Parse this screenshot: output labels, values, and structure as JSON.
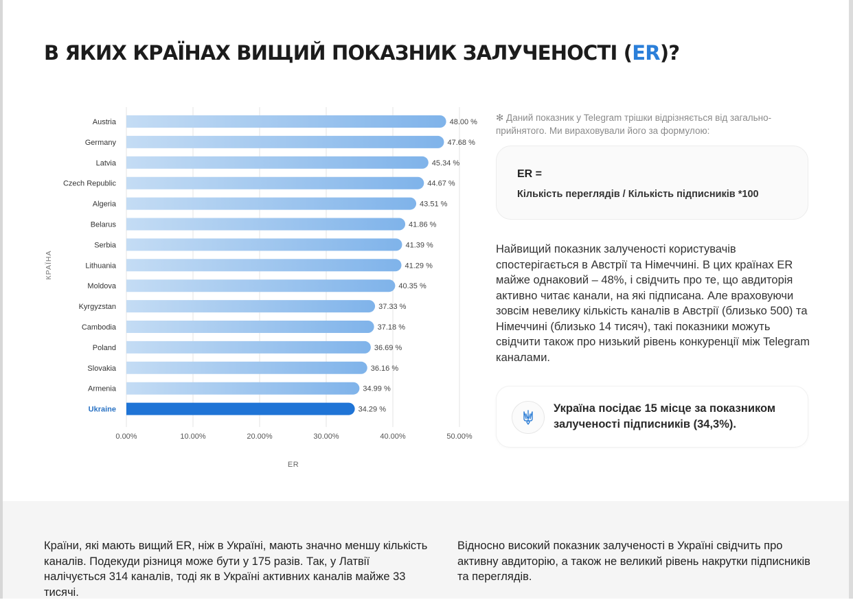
{
  "page": {
    "title_prefix": "В ЯКИХ КРАЇНАХ ВИЩИЙ ПОКАЗНИК ЗАЛУЧЕНОСТІ (",
    "title_accent": "ER",
    "title_suffix": ")?"
  },
  "colors": {
    "accent": "#2b7fd9",
    "bar_light_start": "#c4dcf4",
    "bar_light_end": "#7fb3ea",
    "bar_highlight": "#1f74d6",
    "highlight_label": "#2a73c4",
    "grid": "#e3e3e3",
    "bottom_bg": "#f5f5f5"
  },
  "chart_data": {
    "type": "bar",
    "orientation": "horizontal",
    "title": "",
    "xlabel": "ER",
    "ylabel": "КРАЇНА",
    "xlim": [
      0,
      50
    ],
    "x_ticks": [
      0,
      10,
      20,
      30,
      40,
      50
    ],
    "x_tick_labels": [
      "0.00%",
      "10.00%",
      "20.00%",
      "30.00%",
      "40.00%",
      "50.00%"
    ],
    "grid": "vertical",
    "categories": [
      "Austria",
      "Germany",
      "Latvia",
      "Czech Republic",
      "Algeria",
      "Belarus",
      "Serbia",
      "Lithuania",
      "Moldova",
      "Kyrgyzstan",
      "Cambodia",
      "Poland",
      "Slovakia",
      "Armenia",
      "Ukraine"
    ],
    "values": [
      48.0,
      47.68,
      45.34,
      44.67,
      43.51,
      41.86,
      41.39,
      41.29,
      40.35,
      37.33,
      37.18,
      36.69,
      36.16,
      34.99,
      34.29
    ],
    "value_labels": [
      "48.00 %",
      "47.68 %",
      "45.34 %",
      "44.67 %",
      "43.51 %",
      "41.86 %",
      "41.39 %",
      "41.29 %",
      "40.35 %",
      "37.33 %",
      "37.18 %",
      "36.69 %",
      "36.16 %",
      "34.99 %",
      "34.29 %"
    ],
    "highlight": "Ukraine",
    "unit": "%"
  },
  "note": {
    "text": "✻ Даний показник у Telegram трішки відрізняється від загально-прийнятого. Ми вираховували його за формулою:"
  },
  "formula": {
    "lhs": "ER =",
    "rhs": "Кількість переглядів / Кількість підписників *100"
  },
  "paragraph": "Найвищий показник залученості користувачів спостерігається в Австрії та Німеччині. В цих країнах ER майже однаковий – 48%, і свідчить про те, що авдиторія активно читає канали, на які підписана. Але враховуючи зовсім невелику кількість каналів в Австрії (близько 500) та Німеччині (близько 14 тисяч), такі показники можуть свідчити також про низький рівень конкуренції між Telegram каналами.",
  "callout": {
    "icon": "trident-icon",
    "text": "Україна посідає 15 місце за показником залученості підписників (34,3%)."
  },
  "bottom": {
    "left": "Країни, які мають вищий ER, ніж в Україні, мають значно меншу кількість каналів. Подекуди різниця може бути у 175 разів. Так, у Латвії налічується 314 каналів, тоді як в Україні активних каналів майже 33 тисячі.",
    "right": "Відносно високий показник залученості в Україні свідчить про активну авдиторію, а також не великий рівень накрутки підписників та переглядів."
  }
}
